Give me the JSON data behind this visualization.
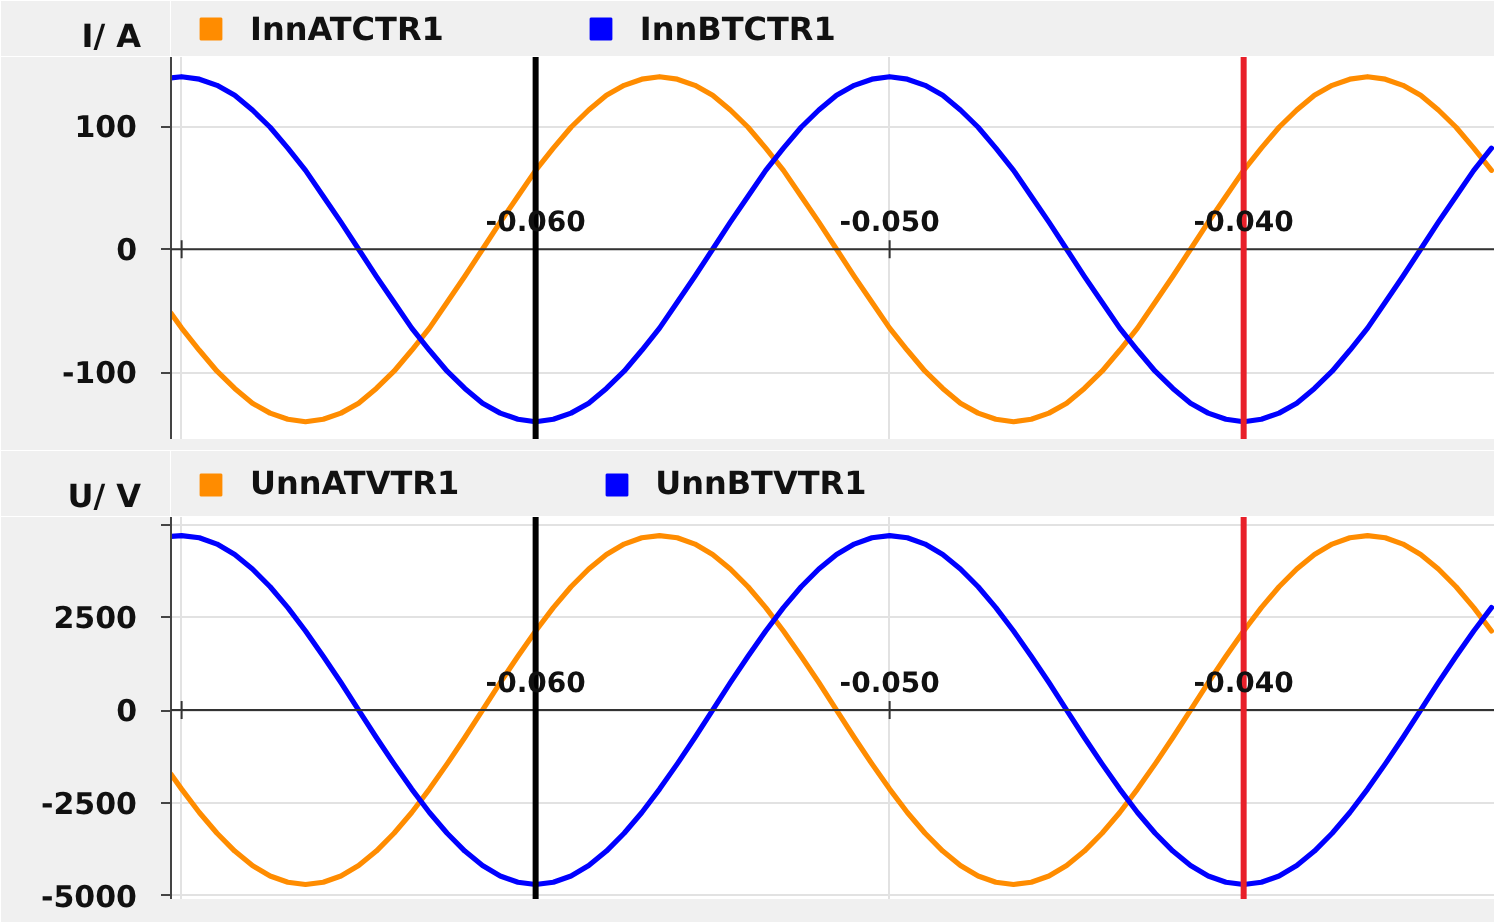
{
  "chart_data": [
    {
      "type": "line",
      "ylabel": "I/ A",
      "legend": "top left",
      "grid": true,
      "x": [
        -0.0703,
        -0.07,
        -0.0695,
        -0.069,
        -0.0685,
        -0.068,
        -0.0675,
        -0.067,
        -0.0665,
        -0.066,
        -0.0655,
        -0.065,
        -0.0645,
        -0.064,
        -0.0635,
        -0.063,
        -0.0625,
        -0.062,
        -0.0615,
        -0.061,
        -0.0605,
        -0.06,
        -0.0595,
        -0.059,
        -0.0585,
        -0.058,
        -0.0575,
        -0.057,
        -0.0565,
        -0.056,
        -0.0555,
        -0.055,
        -0.0545,
        -0.054,
        -0.0535,
        -0.053,
        -0.0525,
        -0.052,
        -0.0515,
        -0.051,
        -0.0505,
        -0.05,
        -0.0495,
        -0.049,
        -0.0485,
        -0.048,
        -0.0475,
        -0.047,
        -0.0465,
        -0.046,
        -0.0455,
        -0.045,
        -0.0445,
        -0.044,
        -0.0435,
        -0.043,
        -0.0425,
        -0.042,
        -0.0415,
        -0.041,
        -0.0405,
        -0.04,
        -0.0395,
        -0.039,
        -0.0385,
        -0.038,
        -0.0375,
        -0.037,
        -0.0365,
        -0.036,
        -0.0355,
        -0.035,
        -0.0345,
        -0.034,
        -0.0335,
        -0.033
      ],
      "xlim": [
        -0.0703,
        -0.0329
      ],
      "xticks": [
        {
          "value": -0.07,
          "label": null
        },
        {
          "value": -0.06,
          "label": "-0.060"
        },
        {
          "value": -0.05,
          "label": "-0.050"
        },
        {
          "value": -0.04,
          "label": "-0.040"
        }
      ],
      "ylim": [
        -154,
        156
      ],
      "yticks": [
        100,
        0,
        -100
      ],
      "series": [
        {
          "name": "InnATCTR1",
          "color": "#ff8c00",
          "values": [
            -52,
            -64,
            -82,
            -99,
            -113,
            -125,
            -133,
            -138,
            -140,
            -138,
            -133,
            -125,
            -113,
            -99,
            -82,
            -64,
            -43,
            -22,
            0,
            22,
            43,
            64,
            82,
            99,
            113,
            125,
            133,
            138,
            140,
            138,
            133,
            125,
            113,
            99,
            82,
            64,
            43,
            22,
            0,
            -22,
            -43,
            -64,
            -82,
            -99,
            -113,
            -125,
            -133,
            -138,
            -140,
            -138,
            -133,
            -125,
            -113,
            -99,
            -82,
            -64,
            -43,
            -22,
            0,
            22,
            43,
            64,
            82,
            99,
            113,
            125,
            133,
            138,
            140,
            138,
            133,
            125,
            113,
            99,
            82,
            64
          ]
        },
        {
          "name": "InnBTCTR1",
          "color": "#0000ff",
          "values": [
            139,
            140,
            138,
            133,
            125,
            113,
            99,
            82,
            64,
            43,
            22,
            0,
            -22,
            -43,
            -64,
            -82,
            -99,
            -113,
            -125,
            -133,
            -138,
            -140,
            -138,
            -133,
            -125,
            -113,
            -99,
            -82,
            -64,
            -43,
            -22,
            0,
            22,
            43,
            64,
            82,
            99,
            113,
            125,
            133,
            138,
            140,
            138,
            133,
            125,
            113,
            99,
            82,
            64,
            43,
            22,
            0,
            -22,
            -43,
            -64,
            -82,
            -99,
            -113,
            -125,
            -133,
            -138,
            -140,
            -138,
            -133,
            -125,
            -113,
            -99,
            -82,
            -64,
            -43,
            -22,
            0,
            22,
            43,
            64,
            82
          ]
        }
      ],
      "ref_lines": [
        {
          "axis": "x",
          "value": -0.06,
          "color": "#000000"
        },
        {
          "axis": "x",
          "value": -0.04,
          "color": "#e8202a"
        }
      ]
    },
    {
      "type": "line",
      "ylabel": "U/ V",
      "legend": "top left",
      "grid": true,
      "x": [
        -0.0703,
        -0.07,
        -0.0695,
        -0.069,
        -0.0685,
        -0.068,
        -0.0675,
        -0.067,
        -0.0665,
        -0.066,
        -0.0655,
        -0.065,
        -0.0645,
        -0.064,
        -0.0635,
        -0.063,
        -0.0625,
        -0.062,
        -0.0615,
        -0.061,
        -0.0605,
        -0.06,
        -0.0595,
        -0.059,
        -0.0585,
        -0.058,
        -0.0575,
        -0.057,
        -0.0565,
        -0.056,
        -0.0555,
        -0.055,
        -0.0545,
        -0.054,
        -0.0535,
        -0.053,
        -0.0525,
        -0.052,
        -0.0515,
        -0.051,
        -0.0505,
        -0.05,
        -0.0495,
        -0.049,
        -0.0485,
        -0.048,
        -0.0475,
        -0.047,
        -0.0465,
        -0.046,
        -0.0455,
        -0.045,
        -0.0445,
        -0.044,
        -0.0435,
        -0.043,
        -0.0425,
        -0.042,
        -0.0415,
        -0.041,
        -0.0405,
        -0.04,
        -0.0395,
        -0.039,
        -0.0385,
        -0.038,
        -0.0375,
        -0.037,
        -0.0365,
        -0.036,
        -0.0355,
        -0.035,
        -0.0345,
        -0.034,
        -0.0335,
        -0.033
      ],
      "xlim": [
        -0.0703,
        -0.0329
      ],
      "xticks": [
        {
          "value": -0.07,
          "label": null
        },
        {
          "value": -0.06,
          "label": "-0.060"
        },
        {
          "value": -0.05,
          "label": "-0.050"
        },
        {
          "value": -0.04,
          "label": "-0.040"
        }
      ],
      "ylim": [
        -5090,
        5200
      ],
      "yticks": [
        {
          "value": 5000,
          "label": null
        },
        2500,
        0,
        -2500,
        -5000
      ],
      "series": [
        {
          "name": "UnnATVTR1",
          "color": "#ff8c00",
          "values": [
            -1730,
            -2130,
            -2760,
            -3320,
            -3800,
            -4190,
            -4470,
            -4640,
            -4700,
            -4640,
            -4470,
            -4190,
            -3800,
            -3320,
            -2760,
            -2130,
            -1450,
            -740,
            0,
            740,
            1450,
            2130,
            2760,
            3320,
            3800,
            4190,
            4470,
            4640,
            4700,
            4640,
            4470,
            4190,
            3800,
            3320,
            2760,
            2130,
            1450,
            740,
            0,
            -740,
            -1450,
            -2130,
            -2760,
            -3320,
            -3800,
            -4190,
            -4470,
            -4640,
            -4700,
            -4640,
            -4470,
            -4190,
            -3800,
            -3320,
            -2760,
            -2130,
            -1450,
            -740,
            0,
            740,
            1450,
            2130,
            2760,
            3320,
            3800,
            4190,
            4470,
            4640,
            4700,
            4640,
            4470,
            4190,
            3800,
            3320,
            2760,
            2130
          ]
        },
        {
          "name": "UnnBTVTR1",
          "color": "#0000ff",
          "values": [
            4680,
            4700,
            4640,
            4470,
            4190,
            3800,
            3320,
            2760,
            2130,
            1450,
            740,
            0,
            -740,
            -1450,
            -2130,
            -2760,
            -3320,
            -3800,
            -4190,
            -4470,
            -4640,
            -4700,
            -4640,
            -4470,
            -4190,
            -3800,
            -3320,
            -2760,
            -2130,
            -1450,
            -740,
            0,
            740,
            1450,
            2130,
            2760,
            3320,
            3800,
            4190,
            4470,
            4640,
            4700,
            4640,
            4470,
            4190,
            3800,
            3320,
            2760,
            2130,
            1450,
            740,
            0,
            -740,
            -1450,
            -2130,
            -2760,
            -3320,
            -3800,
            -4190,
            -4470,
            -4640,
            -4700,
            -4640,
            -4470,
            -4190,
            -3800,
            -3320,
            -2760,
            -2130,
            -1450,
            -740,
            0,
            740,
            1450,
            2130,
            2760
          ]
        }
      ],
      "ref_lines": [
        {
          "axis": "x",
          "value": -0.06,
          "color": "#000000"
        },
        {
          "axis": "x",
          "value": -0.04,
          "color": "#e8202a"
        }
      ]
    }
  ]
}
